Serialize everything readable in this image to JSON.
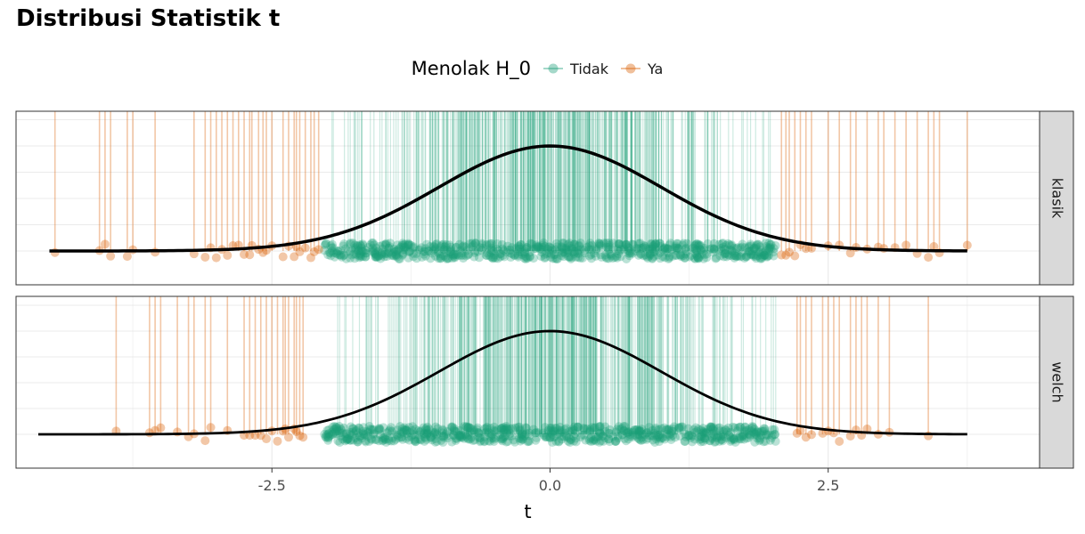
{
  "chart_data": {
    "type": "scatter",
    "title": "Distribusi Statistik t",
    "xlabel": "t",
    "ylabel": "",
    "xlim": [
      -4.8,
      4.4
    ],
    "x_ticks": [
      -2.5,
      0.0,
      2.5
    ],
    "x_tick_labels": [
      "-2.5",
      "0.0",
      "2.5"
    ],
    "legend": {
      "title": "Menolak H_0",
      "position": "top",
      "entries": [
        {
          "label": "Tidak",
          "color": "#1b9e77"
        },
        {
          "label": "Ya",
          "color": "#d95f02"
        }
      ]
    },
    "facets": [
      {
        "label": "klasik",
        "curve_x_range": [
          -4.5,
          3.75
        ],
        "rejected_t": [
          -4.45,
          -4.05,
          -4.0,
          -3.95,
          -3.8,
          -3.75,
          -3.55,
          -3.2,
          -3.1,
          -3.05,
          -3.0,
          -2.95,
          -2.9,
          -2.85,
          -2.8,
          -2.75,
          -2.7,
          -2.68,
          -2.62,
          -2.58,
          -2.55,
          -2.5,
          -2.4,
          -2.35,
          -2.3,
          -2.28,
          -2.25,
          -2.2,
          -2.15,
          -2.12,
          -2.08,
          2.08,
          2.12,
          2.15,
          2.2,
          2.25,
          2.3,
          2.35,
          2.5,
          2.6,
          2.7,
          2.75,
          2.85,
          2.95,
          3.0,
          3.1,
          3.2,
          3.3,
          3.4,
          3.45,
          3.5,
          3.75
        ]
      },
      {
        "label": "welch",
        "curve_x_range": [
          -4.6,
          3.75
        ],
        "rejected_t": [
          -3.9,
          -3.6,
          -3.55,
          -3.5,
          -3.35,
          -3.25,
          -3.2,
          -3.1,
          -3.05,
          -2.9,
          -2.75,
          -2.7,
          -2.65,
          -2.6,
          -2.55,
          -2.5,
          -2.45,
          -2.4,
          -2.38,
          -2.35,
          -2.3,
          -2.28,
          -2.25,
          -2.22,
          2.22,
          2.25,
          2.3,
          2.35,
          2.45,
          2.5,
          2.55,
          2.6,
          2.7,
          2.75,
          2.8,
          2.85,
          2.95,
          3.05,
          3.4
        ]
      }
    ],
    "accept_region": [
      -2.05,
      2.05
    ],
    "grid": true
  }
}
